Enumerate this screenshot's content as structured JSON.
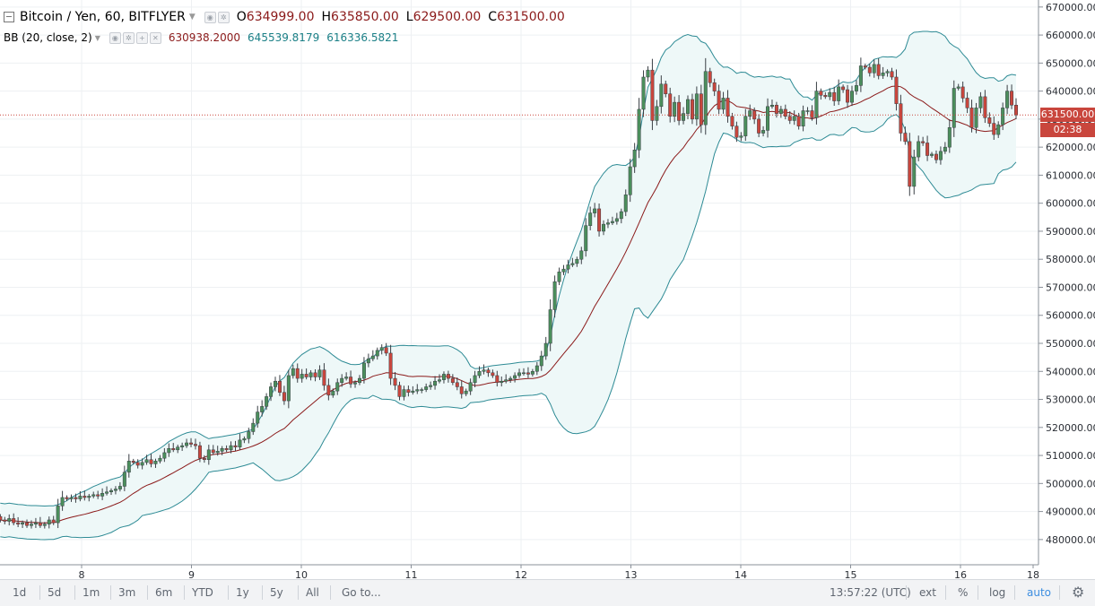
{
  "header": {
    "symbol": "Bitcoin / Yen, 60, BITFLYER",
    "o_label": "O",
    "o_value": "634999.00",
    "h_label": "H",
    "h_value": "635850.00",
    "l_label": "L",
    "l_value": "629500.00",
    "c_label": "C",
    "c_value": "631500.00"
  },
  "indicator": {
    "label": "BB (20, close, 2)",
    "basis": "630938.2000",
    "upper": "645539.8179",
    "lower": "616336.5821"
  },
  "price_tag": {
    "price": "631500.00",
    "countdown": "02:38"
  },
  "toolbar": {
    "timeframes": [
      "1d",
      "5d",
      "1m",
      "3m",
      "6m",
      "YTD",
      "1y",
      "5y",
      "All"
    ],
    "goto": "Go to...",
    "time": "13:57:22 (UTC)",
    "ext": "ext",
    "percent": "%",
    "log": "log",
    "auto": "auto"
  },
  "colors": {
    "up": "#4b8f5c",
    "down": "#c9463d",
    "band": "#2e8b95",
    "basis": "#8b1a1a",
    "band_fill": "#eef8f8",
    "price_line": "#c9463d"
  },
  "chart_data": {
    "type": "candlestick",
    "title": "Bitcoin / Yen, 60, BITFLYER",
    "interval": "60",
    "x_tick_labels": [
      "8",
      "9",
      "10",
      "11",
      "12",
      "13",
      "14",
      "15",
      "16",
      "18"
    ],
    "y_tick_labels": [
      "670000.00",
      "660000.00",
      "650000.00",
      "640000.00",
      "630000.00",
      "620000.00",
      "610000.00",
      "600000.00",
      "590000.00",
      "580000.00",
      "570000.00",
      "560000.00",
      "550000.00",
      "540000.00",
      "530000.00",
      "520000.00",
      "510000.00",
      "500000.00",
      "490000.00",
      "480000.00"
    ],
    "ylim": [
      471000,
      672500
    ],
    "x_day_start": 7.26,
    "current_price": 631500,
    "close_series": [
      487000,
      486500,
      487500,
      486000,
      485500,
      486000,
      485000,
      485500,
      486000,
      485000,
      485500,
      487000,
      486000,
      492000,
      495000,
      494500,
      495000,
      494500,
      495500,
      495000,
      495500,
      496000,
      495500,
      496500,
      497000,
      497500,
      498000,
      499000,
      504000,
      508000,
      507500,
      506500,
      507500,
      508500,
      507000,
      508000,
      509000,
      511000,
      512500,
      512000,
      513000,
      513500,
      514500,
      514000,
      513500,
      509000,
      508500,
      512000,
      511000,
      511500,
      512500,
      512000,
      513500,
      513000,
      515500,
      516000,
      518500,
      521500,
      525500,
      527500,
      531000,
      534500,
      536500,
      532500,
      529500,
      538500,
      541000,
      537500,
      539000,
      538000,
      539500,
      538000,
      540500,
      535000,
      531500,
      533000,
      536000,
      537500,
      538000,
      535500,
      536000,
      537500,
      543000,
      544500,
      545500,
      547500,
      548500,
      546500,
      537500,
      535000,
      531000,
      533500,
      532500,
      533000,
      533500,
      533500,
      534500,
      535000,
      536500,
      537000,
      539000,
      537500,
      536000,
      534500,
      532000,
      533000,
      536000,
      538500,
      540000,
      540500,
      539500,
      538500,
      536000,
      536500,
      537000,
      537500,
      538500,
      539500,
      539500,
      539000,
      540000,
      542000,
      545500,
      550000,
      562000,
      572000,
      575500,
      576500,
      578000,
      578500,
      580000,
      583000,
      592000,
      596500,
      598000,
      590000,
      592500,
      593000,
      593500,
      594500,
      597000,
      603000,
      613000,
      619000,
      633500,
      645000,
      647500,
      629500,
      634500,
      642500,
      639000,
      631000,
      636000,
      629500,
      632000,
      637000,
      630000,
      639000,
      628000,
      647000,
      643000,
      640000,
      633500,
      637500,
      631000,
      627500,
      623500,
      624000,
      631000,
      633000,
      630000,
      625000,
      626000,
      634500,
      635000,
      632000,
      633500,
      631000,
      629500,
      631000,
      627500,
      633000,
      633000,
      630500,
      640000,
      638500,
      638000,
      639500,
      636500,
      641500,
      640500,
      636000,
      640000,
      642000,
      649000,
      648500,
      646500,
      649500,
      645500,
      646500,
      647000,
      645000,
      635500,
      625000,
      622000,
      606000,
      616500,
      622000,
      621500,
      617000,
      617500,
      615500,
      618500,
      620000,
      627000,
      641000,
      641500,
      637500,
      634000,
      627000,
      634000,
      638000,
      630500,
      628500,
      624500,
      628000,
      634000,
      640000,
      635000,
      631500
    ],
    "bollinger": {
      "period": 20,
      "source": "close",
      "stddev": 2,
      "basis": 630938.2,
      "upper": 645539.8179,
      "lower": 616336.5821
    }
  }
}
